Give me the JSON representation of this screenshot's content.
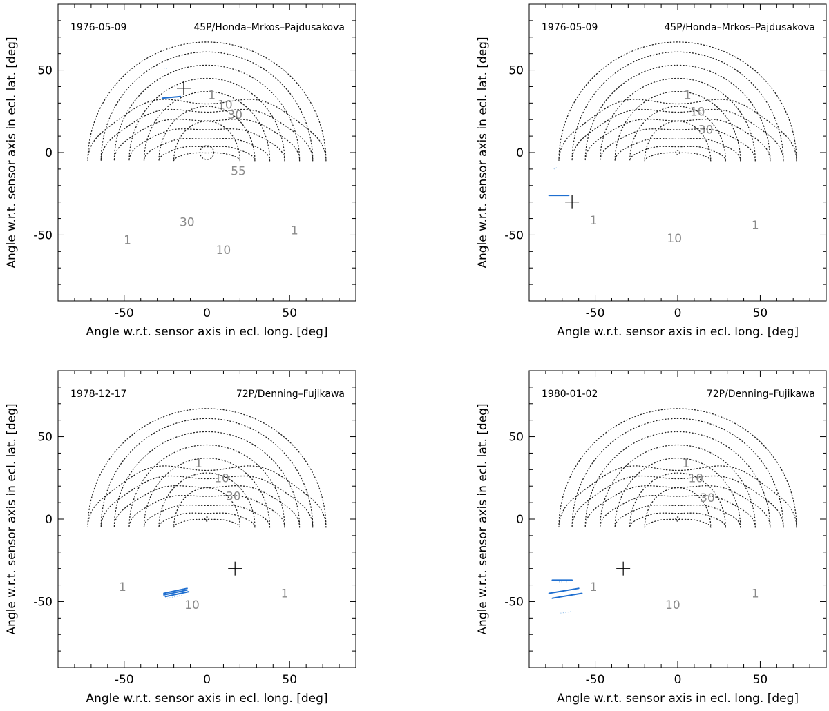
{
  "chart_data": [
    {
      "type": "contour",
      "date": "1976-05-09",
      "comet": "45P/Honda–Mrkos–Pajdusakova",
      "xlabel": "Angle w.r.t. sensor axis in ecl. long. [deg]",
      "ylabel": "Angle w.r.t. sensor axis in ecl. lat. [deg]",
      "xlim": [
        -90,
        90
      ],
      "ylim": [
        -90,
        90
      ],
      "xticks": [
        -50,
        0,
        50
      ],
      "yticks": [
        -50,
        0,
        50
      ],
      "contour_levels": [
        1,
        10,
        30,
        55
      ],
      "contour_labels": [
        {
          "text": "1",
          "x": 3,
          "y": 35
        },
        {
          "text": "10",
          "x": 11,
          "y": 29
        },
        {
          "text": "30",
          "x": 17,
          "y": 23
        },
        {
          "text": "55",
          "x": 19,
          "y": -11
        },
        {
          "text": "30",
          "x": -12,
          "y": -42
        },
        {
          "text": "10",
          "x": 10,
          "y": -59
        },
        {
          "text": "1",
          "x": -48,
          "y": -53
        },
        {
          "text": "1",
          "x": 53,
          "y": -47
        }
      ],
      "contour_center": [
        0,
        0
      ],
      "comet_position": [
        -14,
        39
      ],
      "trails": [
        {
          "points": [
            [
              -27,
              33
            ],
            [
              -16,
              34
            ]
          ],
          "style": "solid"
        },
        {
          "points": [
            [
              -26,
              51
            ],
            [
              -24,
              51
            ]
          ],
          "style": "faint"
        }
      ]
    },
    {
      "type": "contour",
      "date": "1976-05-09",
      "comet": "45P/Honda–Mrkos–Pajdusakova",
      "xlabel": "Angle w.r.t. sensor axis in ecl. long. [deg]",
      "ylabel": "Angle w.r.t. sensor axis in ecl. lat. [deg]",
      "xlim": [
        -90,
        90
      ],
      "ylim": [
        -90,
        90
      ],
      "xticks": [
        -50,
        0,
        50
      ],
      "yticks": [
        -50,
        0,
        50
      ],
      "contour_levels": [
        1,
        10,
        30
      ],
      "contour_labels": [
        {
          "text": "1",
          "x": 6,
          "y": 35
        },
        {
          "text": "10",
          "x": 12,
          "y": 25
        },
        {
          "text": "30",
          "x": 17,
          "y": 14
        },
        {
          "text": "10",
          "x": -2,
          "y": -52
        },
        {
          "text": "1",
          "x": -51,
          "y": -41
        },
        {
          "text": "1",
          "x": 47,
          "y": -44
        }
      ],
      "contour_center": [
        0,
        0
      ],
      "comet_position": [
        -64,
        -30
      ],
      "trails": [
        {
          "points": [
            [
              -78,
              -26
            ],
            [
              -66,
              -26
            ]
          ],
          "style": "solid"
        },
        {
          "points": [
            [
              -75,
              -10
            ],
            [
              -73,
              -9
            ]
          ],
          "style": "faint"
        }
      ]
    },
    {
      "type": "contour",
      "date": "1978-12-17",
      "comet": "72P/Denning–Fujikawa",
      "xlabel": "Angle w.r.t. sensor axis in ecl. long. [deg]",
      "ylabel": "Angle w.r.t. sensor axis in ecl. lat. [deg]",
      "xlim": [
        -90,
        90
      ],
      "ylim": [
        -90,
        90
      ],
      "xticks": [
        -50,
        0,
        50
      ],
      "yticks": [
        -50,
        0,
        50
      ],
      "contour_levels": [
        1,
        10,
        30
      ],
      "contour_labels": [
        {
          "text": "1",
          "x": -5,
          "y": 34
        },
        {
          "text": "10",
          "x": 9,
          "y": 25
        },
        {
          "text": "30",
          "x": 16,
          "y": 14
        },
        {
          "text": "10",
          "x": -9,
          "y": -52
        },
        {
          "text": "1",
          "x": -51,
          "y": -41
        },
        {
          "text": "1",
          "x": 47,
          "y": -45
        }
      ],
      "contour_center": [
        0,
        0
      ],
      "comet_position": [
        17,
        -30
      ],
      "trails": [
        {
          "points": [
            [
              -26,
              -46
            ],
            [
              -12,
              -43
            ]
          ],
          "style": "solid"
        },
        {
          "points": [
            [
              -26,
              -45
            ],
            [
              -12,
              -42
            ]
          ],
          "style": "solid"
        },
        {
          "points": [
            [
              -25,
              -47
            ],
            [
              -11,
              -44
            ]
          ],
          "style": "solid"
        },
        {
          "points": [
            [
              -24,
              -48
            ],
            [
              -14,
              -46
            ]
          ],
          "style": "faint"
        }
      ]
    },
    {
      "type": "contour",
      "date": "1980-01-02",
      "comet": "72P/Denning–Fujikawa",
      "xlabel": "Angle w.r.t. sensor axis in ecl. long. [deg]",
      "ylabel": "Angle w.r.t. sensor axis in ecl. lat. [deg]",
      "xlim": [
        -90,
        90
      ],
      "ylim": [
        -90,
        90
      ],
      "xticks": [
        -50,
        0,
        50
      ],
      "yticks": [
        -50,
        0,
        50
      ],
      "contour_levels": [
        1,
        10,
        30
      ],
      "contour_labels": [
        {
          "text": "1",
          "x": 5,
          "y": 34
        },
        {
          "text": "10",
          "x": 11,
          "y": 25
        },
        {
          "text": "30",
          "x": 18,
          "y": 13
        },
        {
          "text": "10",
          "x": -3,
          "y": -52
        },
        {
          "text": "1",
          "x": -51,
          "y": -41
        },
        {
          "text": "1",
          "x": 47,
          "y": -45
        }
      ],
      "contour_center": [
        0,
        0
      ],
      "comet_position": [
        -33,
        -30
      ],
      "trails": [
        {
          "points": [
            [
              -76,
              -37
            ],
            [
              -64,
              -37
            ]
          ],
          "style": "solid"
        },
        {
          "points": [
            [
              -78,
              -45
            ],
            [
              -60,
              -42
            ]
          ],
          "style": "solid"
        },
        {
          "points": [
            [
              -76,
              -48
            ],
            [
              -58,
              -45
            ]
          ],
          "style": "solid"
        },
        {
          "points": [
            [
              -72,
              -38
            ],
            [
              -66,
              -38
            ]
          ],
          "style": "faint"
        },
        {
          "points": [
            [
              -71,
              -57
            ],
            [
              -64,
              -56
            ]
          ],
          "style": "faint"
        }
      ]
    }
  ]
}
